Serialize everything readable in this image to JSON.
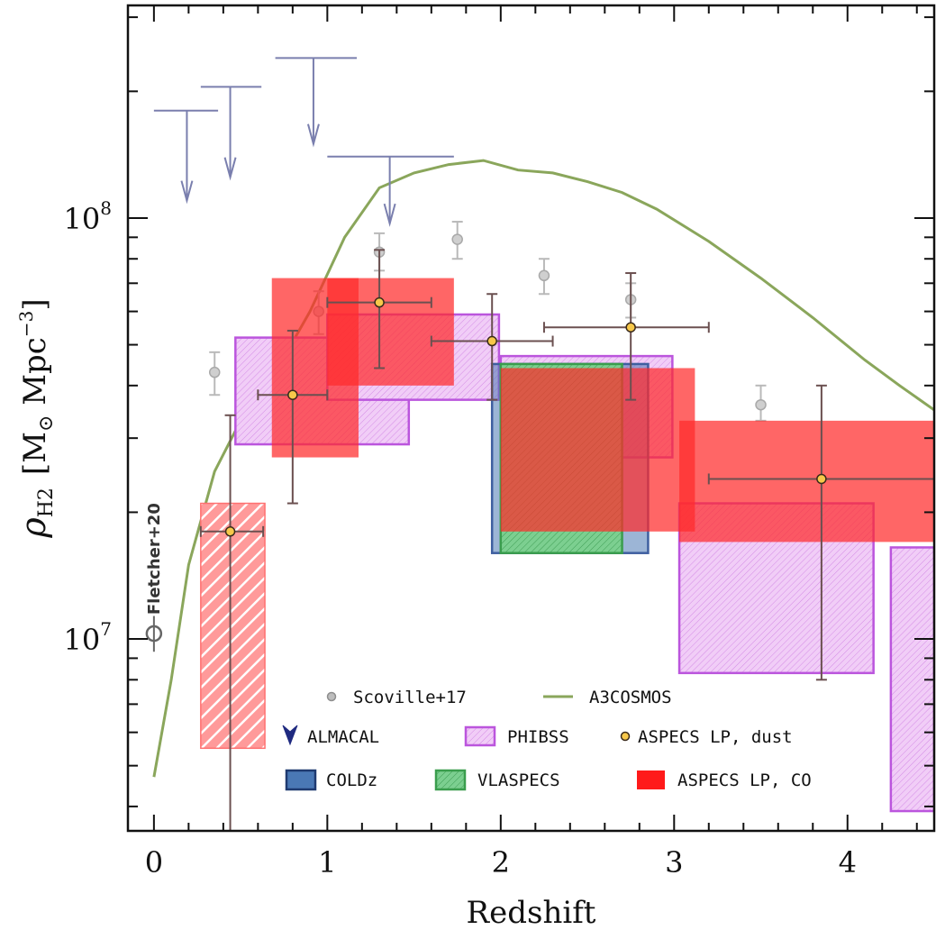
{
  "chart_data": {
    "type": "scatter",
    "title": "",
    "xlabel": "Redshift",
    "ylabel": {
      "main": "ρ",
      "sub": "H2",
      "units": "[M",
      "sun": "⊙",
      "units_rest": " Mpc",
      "exp": "−3",
      "close": "]"
    },
    "xlim": [
      -0.15,
      4.5
    ],
    "ylim": [
      3500000,
      320000000
    ],
    "y_scale": "log",
    "x_ticks": [
      {
        "value": 0,
        "label": "0"
      },
      {
        "value": 1,
        "label": "1"
      },
      {
        "value": 2,
        "label": "2"
      },
      {
        "value": 3,
        "label": "3"
      },
      {
        "value": 4,
        "label": "4"
      }
    ],
    "y_ticks": [
      {
        "value": 10000000,
        "base": "10",
        "exp": "7"
      },
      {
        "value": 100000000,
        "base": "10",
        "exp": "8"
      }
    ],
    "legend_position": "bottom-center",
    "annotation": "Fletcher+20",
    "series": [
      {
        "name": "Scoville+17",
        "kind": "points",
        "color": "#b9b9b9",
        "points": [
          {
            "x": 0.35,
            "y": 43000000,
            "ylo": 38000000,
            "yhi": 48000000
          },
          {
            "x": 0.65,
            "y": 47000000,
            "ylo": 42000000,
            "yhi": 52000000
          },
          {
            "x": 0.95,
            "y": 60000000,
            "ylo": 53000000,
            "yhi": 67000000
          },
          {
            "x": 1.3,
            "y": 83000000,
            "ylo": 75000000,
            "yhi": 92000000
          },
          {
            "x": 1.75,
            "y": 89000000,
            "ylo": 80000000,
            "yhi": 98000000
          },
          {
            "x": 2.25,
            "y": 73000000,
            "ylo": 66000000,
            "yhi": 80000000
          },
          {
            "x": 2.75,
            "y": 64000000,
            "ylo": 58000000,
            "yhi": 70000000
          },
          {
            "x": 3.5,
            "y": 36000000,
            "ylo": 33000000,
            "yhi": 40000000
          }
        ]
      },
      {
        "name": "A3COSMOS",
        "kind": "curve",
        "color": "#8aa65b",
        "x": [
          0,
          0.1,
          0.2,
          0.35,
          0.5,
          0.7,
          0.9,
          1.1,
          1.3,
          1.5,
          1.7,
          1.9,
          2.1,
          2.3,
          2.5,
          2.7,
          2.9,
          3.2,
          3.5,
          3.8,
          4.1,
          4.3,
          4.5
        ],
        "y": [
          4700000,
          8000000,
          15000000,
          25000000,
          33000000,
          43000000,
          60000000,
          90000000,
          118000000,
          128000000,
          134000000,
          137000000,
          130000000,
          128000000,
          122000000,
          115000000,
          105000000,
          88000000,
          72000000,
          58000000,
          46000000,
          40000000,
          35000000
        ]
      },
      {
        "name": "ALMACAL",
        "kind": "upper-limits",
        "color": "#7a7fae",
        "limits": [
          {
            "x": 0.19,
            "y": 180000000,
            "xlo": 0.0,
            "xhi": 0.37,
            "arrow_to": 110000000
          },
          {
            "x": 0.44,
            "y": 205000000,
            "xlo": 0.27,
            "xhi": 0.62,
            "arrow_to": 125000000
          },
          {
            "x": 0.92,
            "y": 240000000,
            "xlo": 0.7,
            "xhi": 1.17,
            "arrow_to": 150000000
          },
          {
            "x": 1.36,
            "y": 140000000,
            "xlo": 1.0,
            "xhi": 1.73,
            "arrow_to": 97000000
          }
        ]
      },
      {
        "name": "PHIBSS",
        "kind": "boxes",
        "color": "#bb55dd",
        "fill": "#eebff5",
        "boxes": [
          {
            "xlo": 0.47,
            "xhi": 1.47,
            "ylo": 29000000,
            "yhi": 52000000
          },
          {
            "xlo": 1.0,
            "xhi": 1.99,
            "ylo": 37000000,
            "yhi": 59000000
          },
          {
            "xlo": 2.0,
            "xhi": 2.99,
            "ylo": 27000000,
            "yhi": 47000000
          },
          {
            "xlo": 3.03,
            "xhi": 4.15,
            "ylo": 8300000,
            "yhi": 21000000
          },
          {
            "xlo": 4.25,
            "xhi": 4.5,
            "ylo": 3900000,
            "yhi": 16500000
          }
        ]
      },
      {
        "name": "COLDz",
        "kind": "boxes",
        "color": "#3f5fa0",
        "fill": "#4a78b5",
        "boxes": [
          {
            "xlo": 1.95,
            "xhi": 2.85,
            "ylo": 16000000,
            "yhi": 45000000
          }
        ]
      },
      {
        "name": "VLASPECS",
        "kind": "boxes",
        "color": "#3a9d4d",
        "fill": "#66c57c",
        "boxes": [
          {
            "xlo": 2.0,
            "xhi": 2.7,
            "ylo": 16000000,
            "yhi": 45000000
          }
        ]
      },
      {
        "name": "ASPECS LP, CO",
        "kind": "boxes",
        "color": "#ff1a1a",
        "fill": "#ff2b2b",
        "boxes": [
          {
            "xlo": 0.68,
            "xhi": 1.18,
            "ylo": 27000000,
            "yhi": 72000000
          },
          {
            "xlo": 1.0,
            "xhi": 1.73,
            "ylo": 40000000,
            "yhi": 72000000
          },
          {
            "xlo": 2.0,
            "xhi": 3.12,
            "ylo": 18000000,
            "yhi": 44000000
          },
          {
            "xlo": 3.03,
            "xhi": 4.5,
            "ylo": 17000000,
            "yhi": 33000000
          }
        ],
        "hatched_box": {
          "xlo": 0.27,
          "xhi": 0.64,
          "ylo": 5500000,
          "yhi": 21000000
        }
      },
      {
        "name": "ASPECS LP, dust",
        "kind": "points",
        "color": "#f7c84a",
        "points": [
          {
            "x": 0.44,
            "y": 18000000,
            "xlo": 0.27,
            "xhi": 0.63,
            "ylo": 3500000,
            "yhi": 34000000
          },
          {
            "x": 0.8,
            "y": 38000000,
            "xlo": 0.6,
            "xhi": 1.0,
            "ylo": 21000000,
            "yhi": 54000000
          },
          {
            "x": 1.3,
            "y": 63000000,
            "xlo": 1.0,
            "xhi": 1.6,
            "ylo": 44000000,
            "yhi": 84000000
          },
          {
            "x": 1.95,
            "y": 51000000,
            "xlo": 1.6,
            "xhi": 2.3,
            "ylo": 37000000,
            "yhi": 66000000
          },
          {
            "x": 2.75,
            "y": 55000000,
            "xlo": 2.25,
            "xhi": 3.2,
            "ylo": 37000000,
            "yhi": 74000000
          },
          {
            "x": 3.85,
            "y": 24000000,
            "xlo": 3.2,
            "xhi": 4.5,
            "ylo": 8000000,
            "yhi": 40000000
          }
        ]
      },
      {
        "name": "Fletcher+20",
        "kind": "points",
        "color": "#777777",
        "points": [
          {
            "x": 0.0,
            "y": 10300000,
            "ylo": 9700000,
            "yhi": 10900000
          }
        ]
      }
    ]
  }
}
